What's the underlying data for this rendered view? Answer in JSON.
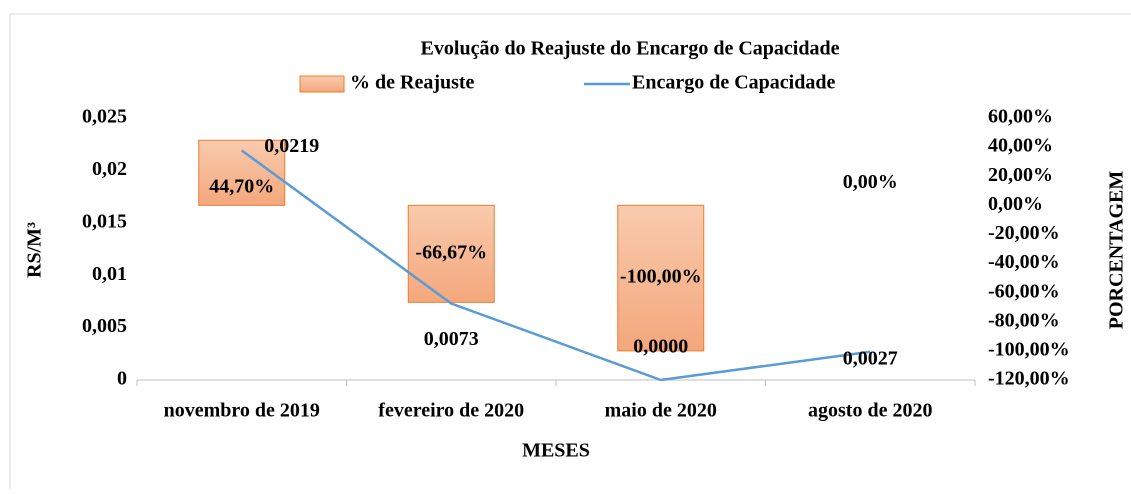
{
  "chart_data": {
    "type": "bar_line",
    "title": "Evolução do Reajuste do Encargo de Capacidade",
    "x_label": "MESES",
    "y_label": "RS/M³",
    "y2_label": "PORCENTAGEM",
    "categories": [
      "novembro de 2019",
      "fevereiro de 2020",
      "maio de 2020",
      "agosto de 2020"
    ],
    "series": [
      {
        "name": "% de Reajuste",
        "type": "bar",
        "axis": "y2",
        "color": "#f4b183",
        "edge_color": "#ed7d31",
        "values": [
          44.7,
          -66.67,
          -100.0,
          0.0
        ],
        "value_labels": [
          "44,70%",
          "-66,67%",
          "-100,00%",
          "0,00%"
        ]
      },
      {
        "name": "Encargo de Capacidade",
        "type": "line",
        "axis": "y",
        "color": "#5b9bd5",
        "values": [
          0.0219,
          0.0073,
          0.0,
          0.0027
        ],
        "value_labels": [
          "0,0219",
          "0,0073",
          "0,0000",
          "0,0027"
        ]
      }
    ],
    "ylim": [
      0,
      0.025
    ],
    "yticks": [
      0,
      {
        "value": 0.005,
        "label": "0,005"
      },
      {
        "value": 0.01,
        "label": "0,01"
      },
      {
        "value": 0.015,
        "label": "0,015"
      },
      {
        "value": 0.02,
        "label": "0,02"
      },
      {
        "value": 0.025,
        "label": "0,025"
      }
    ],
    "y2lim": [
      -120,
      60
    ],
    "y2ticks": [
      {
        "value": -120,
        "label": "-120,00%"
      },
      {
        "value": -100,
        "label": "-100,00%"
      },
      {
        "value": -80,
        "label": "-80,00%"
      },
      {
        "value": -60,
        "label": "-60,00%"
      },
      {
        "value": -40,
        "label": "-40,00%"
      },
      {
        "value": -20,
        "label": "-20,00%"
      },
      {
        "value": 0,
        "label": "0,00%"
      },
      {
        "value": 20,
        "label": "20,00%"
      },
      {
        "value": 40,
        "label": "40,00%"
      },
      {
        "value": 60,
        "label": "60,00%"
      }
    ],
    "grid": false
  }
}
